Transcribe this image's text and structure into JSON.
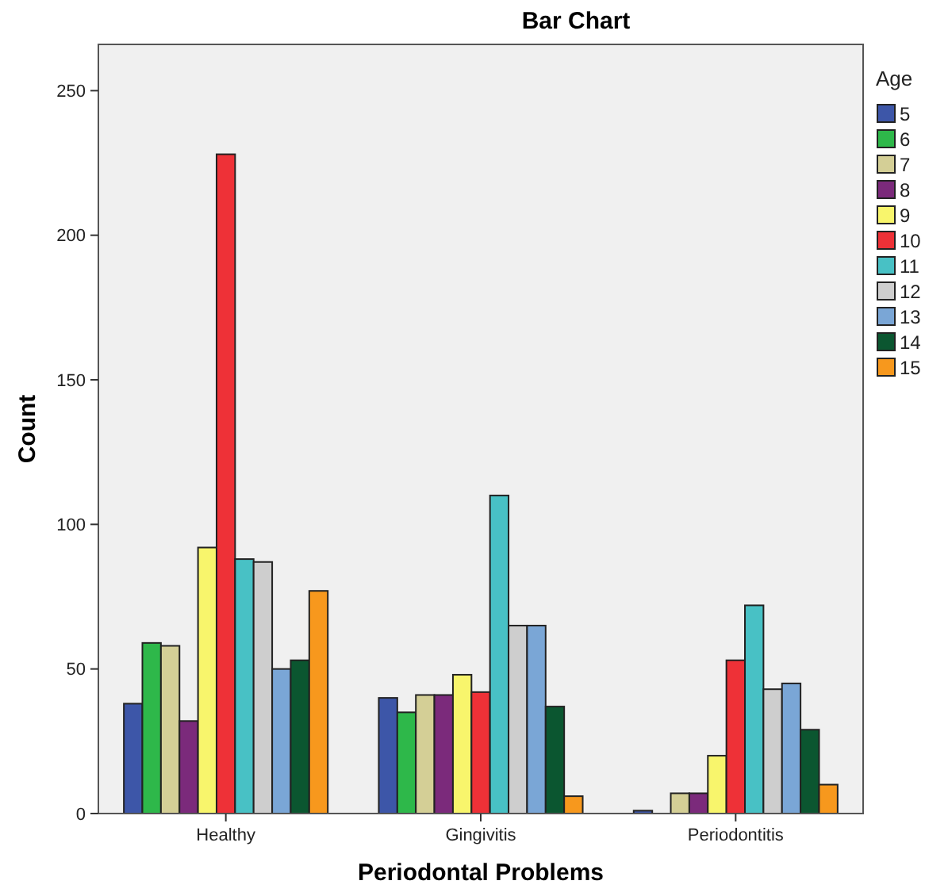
{
  "chart_data": {
    "type": "bar",
    "title": "Bar Chart",
    "xlabel": "Periodontal Problems",
    "ylabel": "Count",
    "legend_title": "Age",
    "legend": "right",
    "categories": [
      "Healthy",
      "Gingivitis",
      "Periodontitis"
    ],
    "ylim": [
      0,
      266
    ],
    "yticks": [
      0,
      50,
      100,
      150,
      200,
      250
    ],
    "grid": false,
    "series": [
      {
        "name": "5",
        "color": "#3d56a8",
        "values": [
          38,
          40,
          1
        ]
      },
      {
        "name": "6",
        "color": "#2eb84a",
        "values": [
          59,
          35,
          0
        ]
      },
      {
        "name": "7",
        "color": "#d4cf96",
        "values": [
          58,
          41,
          7
        ]
      },
      {
        "name": "8",
        "color": "#7b2a7b",
        "values": [
          32,
          41,
          7
        ]
      },
      {
        "name": "9",
        "color": "#f8f56c",
        "values": [
          92,
          48,
          20
        ]
      },
      {
        "name": "10",
        "color": "#ee3137",
        "values": [
          228,
          42,
          53
        ]
      },
      {
        "name": "11",
        "color": "#48c1c5",
        "values": [
          88,
          110,
          72
        ]
      },
      {
        "name": "12",
        "color": "#cecece",
        "values": [
          87,
          65,
          43
        ]
      },
      {
        "name": "13",
        "color": "#7aa6d6",
        "values": [
          50,
          65,
          45
        ]
      },
      {
        "name": "14",
        "color": "#0b5630",
        "values": [
          53,
          37,
          29
        ]
      },
      {
        "name": "15",
        "color": "#f7981d",
        "values": [
          77,
          6,
          10
        ]
      }
    ]
  }
}
